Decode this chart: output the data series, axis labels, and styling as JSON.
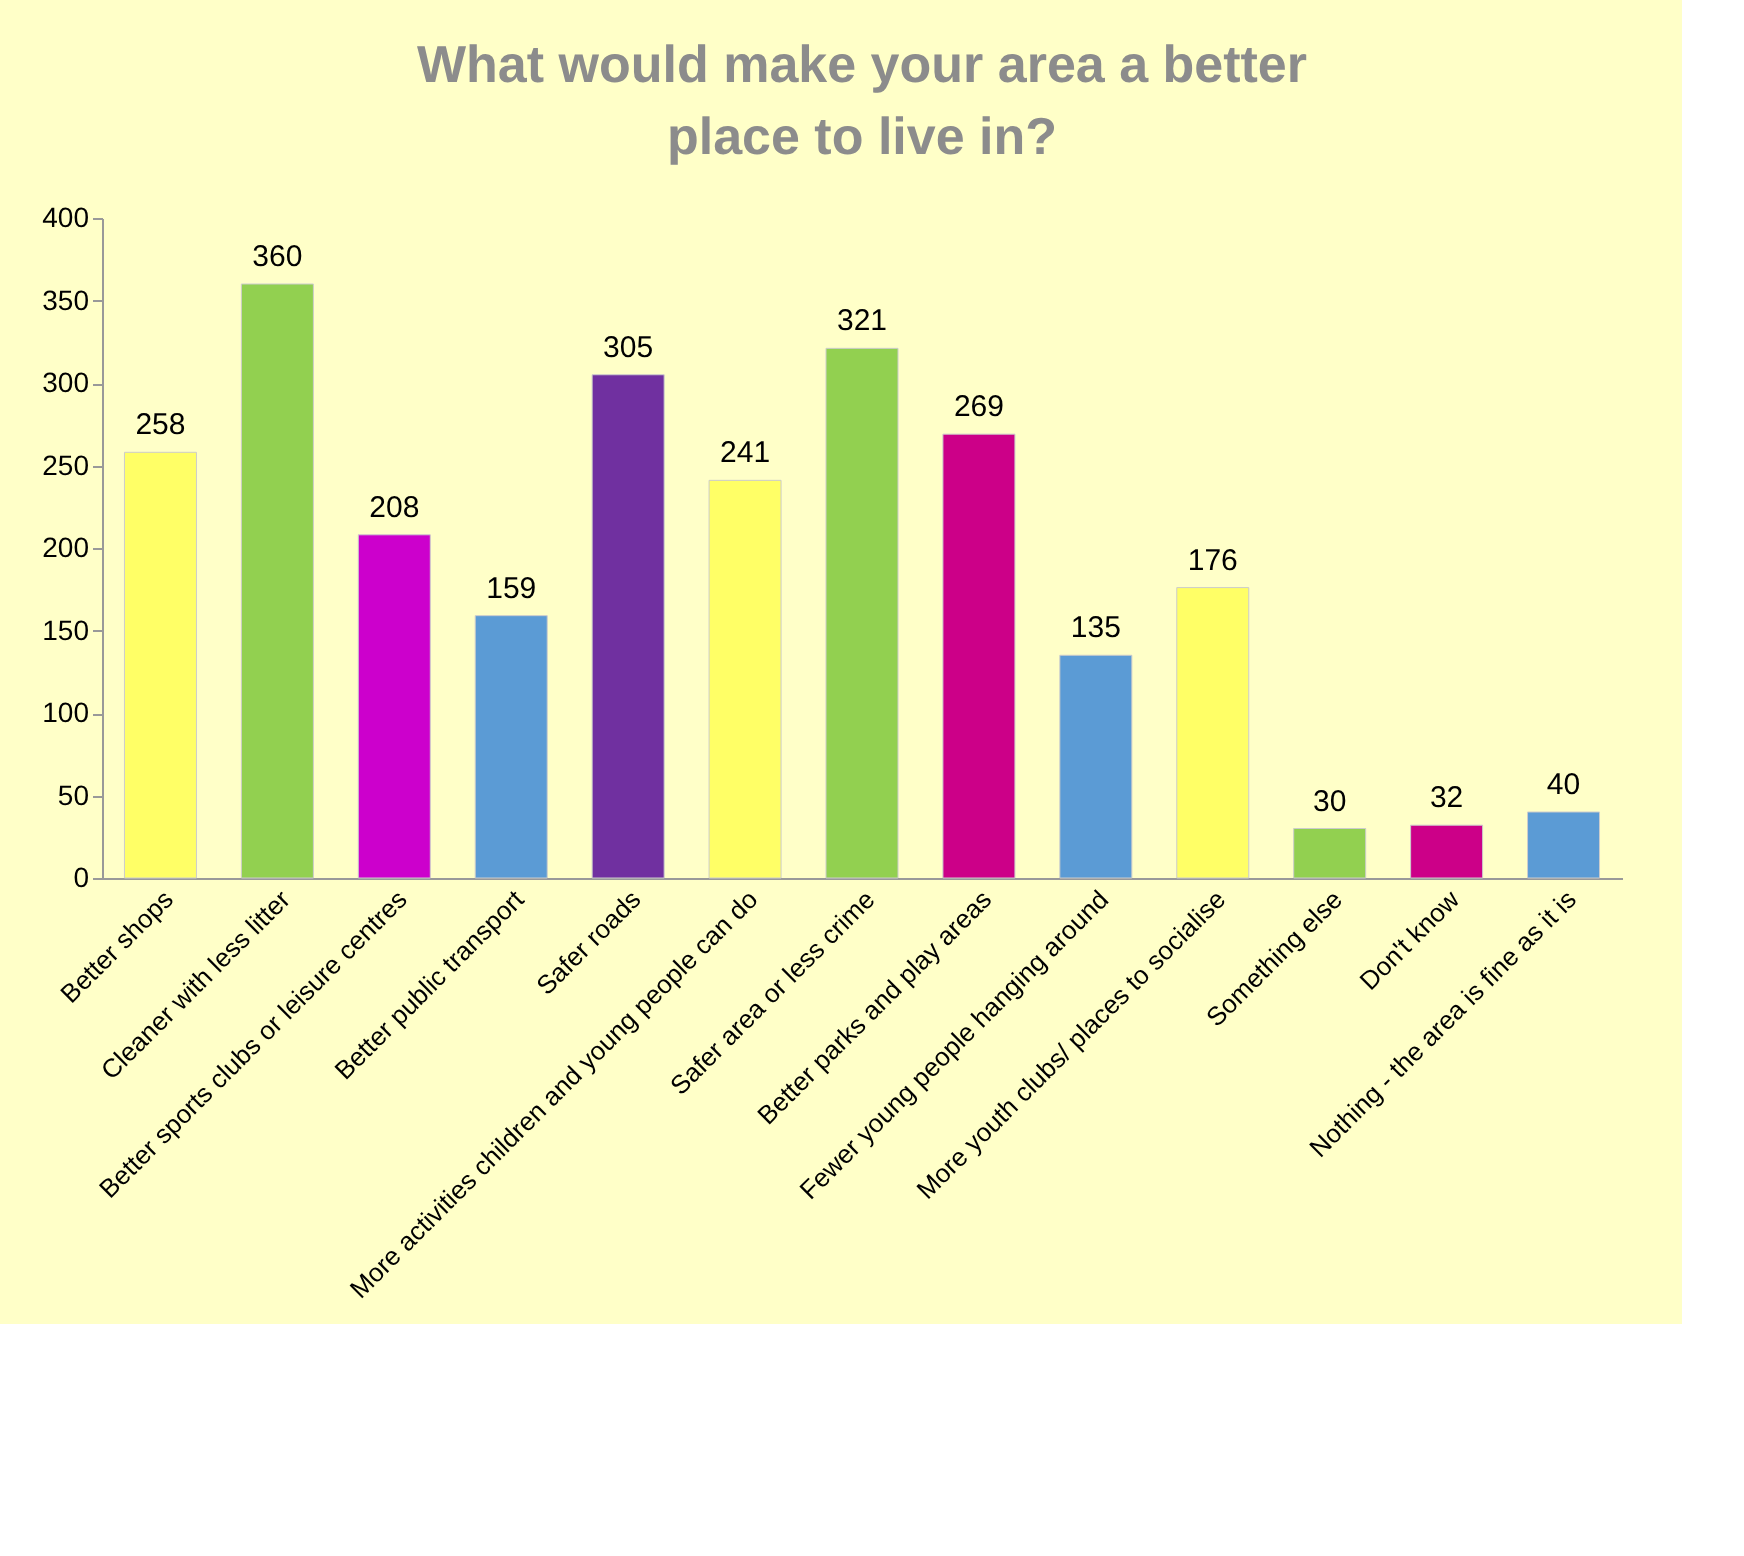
{
  "chart_data": {
    "type": "bar",
    "title": "What would make your area a better place to live in?",
    "categories": [
      "Better shops",
      "Cleaner with less litter",
      "Better sports clubs or leisure centres",
      "Better public transport",
      "Safer roads",
      "More activities children and young people can do",
      "Safer area or less crime",
      "Better parks and play areas",
      "Fewer young people hanging around",
      "More youth clubs/ places to socialise",
      "Something else",
      "Don't know",
      "Nothing - the area is fine as it is"
    ],
    "values": [
      258,
      360,
      208,
      159,
      305,
      241,
      321,
      269,
      135,
      176,
      30,
      32,
      40
    ],
    "colors": [
      "#ffff66",
      "#92d050",
      "#cc00cc",
      "#5b9bd5",
      "#7030a0",
      "#ffff66",
      "#92d050",
      "#cc0088",
      "#5b9bd5",
      "#ffff66",
      "#92d050",
      "#cc0088",
      "#5b9bd5"
    ],
    "ylim": [
      0,
      400
    ],
    "yticks": [
      0,
      50,
      100,
      150,
      200,
      250,
      300,
      350,
      400
    ],
    "grid": false,
    "legend": false,
    "data_labels": true
  }
}
